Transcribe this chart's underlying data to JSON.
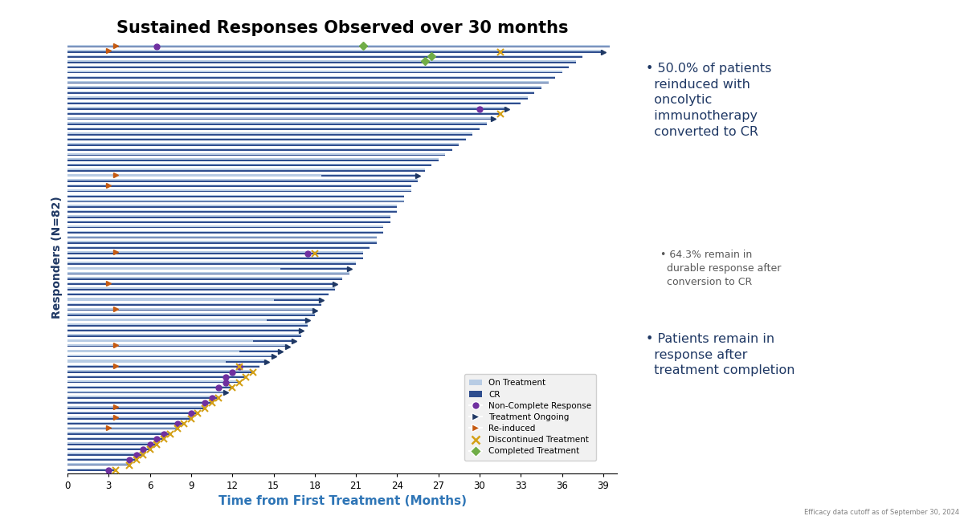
{
  "title": "Sustained Responses Observed over 30 months",
  "xlabel": "Time from First Treatment (Months)",
  "ylabel": "Responders (N=82)",
  "xlim": [
    0,
    40
  ],
  "xticks": [
    0,
    3,
    6,
    9,
    12,
    15,
    18,
    21,
    24,
    27,
    30,
    33,
    36,
    39
  ],
  "footnote": "Efficacy data cutoff as of September 30, 2024",
  "color_on": "#b8cce4",
  "color_cr": "#2e4d8e",
  "color_ncr": "#7030a0",
  "color_ongoing": "#1f3864",
  "color_reinduced": "#c55a11",
  "color_disc": "#d4a017",
  "color_completed": "#70ad47",
  "bullet1_color": "#1f3864",
  "bullet2_color": "#595959",
  "bullet1": "50.0% of patients\nreinduced with\noncolytic\nimmunotherapy\nconverted to CR",
  "bullet2": "64.3% remain in\ndurable response after\nconversion to CR",
  "bullet3": "Patients remain in\nresponse after\ntreatment completion",
  "patients": [
    [
      39.5,
      null,
      null,
      3.5,
      6.5,
      21.5,
      null,
      false
    ],
    [
      39.0,
      null,
      null,
      3.0,
      null,
      null,
      31.5,
      true
    ],
    [
      37.5,
      null,
      null,
      null,
      null,
      26.5,
      null,
      false
    ],
    [
      37.0,
      null,
      null,
      null,
      null,
      26.0,
      null,
      false
    ],
    [
      36.5,
      null,
      null,
      null,
      null,
      null,
      null,
      false
    ],
    [
      36.0,
      null,
      null,
      null,
      null,
      null,
      null,
      false
    ],
    [
      35.5,
      null,
      null,
      null,
      null,
      null,
      null,
      false
    ],
    [
      35.0,
      null,
      null,
      null,
      null,
      null,
      null,
      false
    ],
    [
      34.5,
      null,
      null,
      null,
      null,
      null,
      null,
      false
    ],
    [
      34.0,
      null,
      null,
      null,
      null,
      null,
      null,
      false
    ],
    [
      33.5,
      null,
      null,
      null,
      null,
      null,
      null,
      false
    ],
    [
      33.0,
      null,
      null,
      null,
      null,
      null,
      null,
      false
    ],
    [
      32.0,
      null,
      null,
      null,
      30.0,
      null,
      null,
      true
    ],
    [
      31.5,
      null,
      null,
      null,
      null,
      null,
      31.5,
      false
    ],
    [
      31.0,
      null,
      null,
      null,
      null,
      null,
      null,
      true
    ],
    [
      30.5,
      null,
      null,
      null,
      null,
      null,
      null,
      false
    ],
    [
      30.0,
      null,
      null,
      null,
      null,
      null,
      null,
      false
    ],
    [
      29.5,
      null,
      null,
      null,
      null,
      null,
      null,
      false
    ],
    [
      29.0,
      null,
      null,
      null,
      null,
      null,
      null,
      false
    ],
    [
      28.5,
      null,
      null,
      null,
      null,
      null,
      null,
      false
    ],
    [
      28.0,
      null,
      null,
      null,
      null,
      null,
      null,
      false
    ],
    [
      27.5,
      null,
      null,
      null,
      null,
      null,
      null,
      false
    ],
    [
      27.0,
      null,
      null,
      null,
      null,
      null,
      null,
      false
    ],
    [
      26.5,
      null,
      null,
      null,
      null,
      null,
      null,
      false
    ],
    [
      26.0,
      null,
      null,
      null,
      null,
      null,
      null,
      false
    ],
    [
      25.5,
      18.5,
      25.5,
      3.5,
      null,
      null,
      null,
      true
    ],
    [
      25.0,
      null,
      null,
      3.0,
      null,
      null,
      null,
      false
    ],
    [
      24.5,
      null,
      null,
      null,
      null,
      null,
      null,
      false
    ],
    [
      24.0,
      null,
      null,
      null,
      null,
      null,
      null,
      false
    ],
    [
      23.5,
      null,
      null,
      null,
      null,
      null,
      null,
      false
    ],
    [
      23.0,
      null,
      null,
      null,
      null,
      null,
      null,
      false
    ],
    [
      22.5,
      null,
      null,
      null,
      null,
      null,
      null,
      false
    ],
    [
      21.5,
      null,
      null,
      3.5,
      17.5,
      null,
      18.0,
      false
    ],
    [
      20.5,
      15.5,
      20.5,
      null,
      null,
      null,
      null,
      true
    ],
    [
      19.5,
      null,
      null,
      3.0,
      null,
      null,
      null,
      true
    ],
    [
      18.5,
      15.0,
      18.5,
      null,
      null,
      null,
      null,
      true
    ],
    [
      18.0,
      null,
      null,
      3.5,
      null,
      null,
      null,
      true
    ],
    [
      17.5,
      14.5,
      17.5,
      null,
      null,
      null,
      null,
      true
    ],
    [
      17.0,
      null,
      null,
      null,
      null,
      null,
      null,
      true
    ],
    [
      16.5,
      13.5,
      16.5,
      null,
      null,
      null,
      null,
      true
    ],
    [
      16.0,
      null,
      null,
      3.5,
      null,
      null,
      null,
      true
    ],
    [
      15.5,
      12.5,
      15.5,
      null,
      null,
      null,
      null,
      true
    ],
    [
      15.0,
      null,
      null,
      null,
      null,
      null,
      null,
      true
    ],
    [
      14.5,
      11.5,
      14.5,
      null,
      null,
      null,
      null,
      true
    ],
    [
      14.0,
      null,
      null,
      3.5,
      12.5,
      null,
      12.5,
      false
    ],
    [
      13.5,
      null,
      null,
      null,
      12.0,
      null,
      13.5,
      false
    ],
    [
      13.0,
      null,
      null,
      null,
      11.5,
      null,
      13.0,
      false
    ],
    [
      12.5,
      null,
      null,
      null,
      11.5,
      null,
      12.5,
      false
    ],
    [
      12.0,
      null,
      null,
      null,
      11.0,
      null,
      12.0,
      false
    ],
    [
      11.5,
      null,
      null,
      null,
      null,
      null,
      null,
      true
    ],
    [
      11.0,
      null,
      null,
      null,
      10.5,
      null,
      11.0,
      false
    ],
    [
      10.5,
      null,
      null,
      null,
      10.0,
      null,
      10.5,
      false
    ],
    [
      10.0,
      null,
      null,
      3.5,
      null,
      null,
      10.0,
      false
    ],
    [
      9.5,
      null,
      null,
      null,
      9.0,
      null,
      9.5,
      false
    ],
    [
      9.0,
      null,
      null,
      3.5,
      null,
      null,
      9.0,
      false
    ],
    [
      8.5,
      null,
      null,
      null,
      8.0,
      null,
      8.5,
      false
    ],
    [
      8.0,
      null,
      null,
      3.0,
      null,
      null,
      8.0,
      false
    ],
    [
      7.5,
      null,
      null,
      null,
      7.0,
      null,
      7.5,
      false
    ],
    [
      7.0,
      null,
      null,
      null,
      6.5,
      null,
      7.0,
      false
    ],
    [
      6.5,
      null,
      null,
      null,
      6.0,
      null,
      6.5,
      false
    ],
    [
      6.0,
      null,
      null,
      null,
      5.5,
      null,
      6.0,
      false
    ],
    [
      5.5,
      null,
      null,
      null,
      5.0,
      null,
      5.5,
      false
    ],
    [
      5.0,
      null,
      null,
      null,
      4.5,
      null,
      5.0,
      false
    ],
    [
      4.5,
      null,
      null,
      null,
      null,
      null,
      4.5,
      false
    ],
    [
      3.5,
      null,
      null,
      null,
      3.0,
      null,
      3.5,
      false
    ],
    [
      25.5,
      null,
      null,
      null,
      null,
      null,
      null,
      false
    ],
    [
      25.0,
      null,
      null,
      null,
      null,
      null,
      null,
      false
    ],
    [
      24.5,
      null,
      null,
      null,
      null,
      null,
      null,
      false
    ],
    [
      24.0,
      null,
      null,
      null,
      null,
      null,
      null,
      false
    ],
    [
      23.5,
      null,
      null,
      null,
      null,
      null,
      null,
      false
    ],
    [
      23.0,
      null,
      null,
      null,
      null,
      null,
      null,
      false
    ],
    [
      22.5,
      null,
      null,
      null,
      null,
      null,
      null,
      false
    ],
    [
      22.0,
      null,
      null,
      null,
      null,
      null,
      null,
      false
    ],
    [
      21.5,
      null,
      null,
      null,
      null,
      null,
      null,
      false
    ],
    [
      21.0,
      null,
      null,
      null,
      null,
      null,
      null,
      false
    ],
    [
      20.5,
      null,
      null,
      null,
      null,
      null,
      null,
      false
    ],
    [
      20.0,
      null,
      null,
      null,
      null,
      null,
      null,
      false
    ],
    [
      19.5,
      null,
      null,
      null,
      null,
      null,
      null,
      false
    ],
    [
      19.0,
      null,
      null,
      null,
      null,
      null,
      null,
      false
    ],
    [
      18.5,
      null,
      null,
      null,
      null,
      null,
      null,
      false
    ],
    [
      18.0,
      null,
      null,
      null,
      null,
      null,
      null,
      false
    ],
    [
      17.5,
      null,
      null,
      null,
      null,
      null,
      null,
      false
    ],
    [
      17.0,
      null,
      null,
      null,
      null,
      null,
      null,
      false
    ]
  ]
}
